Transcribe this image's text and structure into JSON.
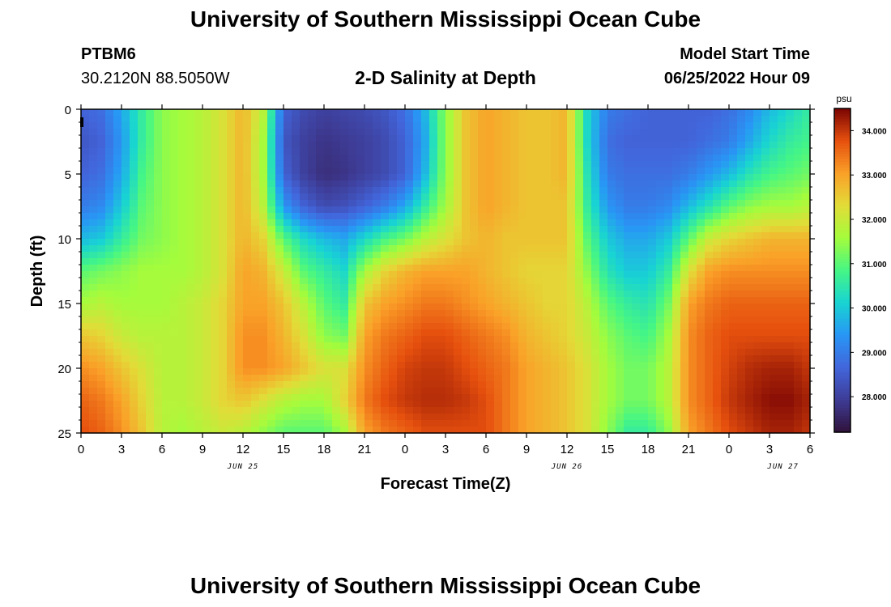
{
  "header": {
    "title": "University of Southern Mississippi Ocean Cube",
    "station_id": "PTBM6",
    "coordinates": "30.2120N  88.5050W",
    "subtitle": "2-D Salinity at Depth",
    "model_start_label": "Model Start Time",
    "model_start_value": "06/25/2022 Hour 09",
    "footer_title": "University of Southern Mississippi Ocean Cube"
  },
  "chart_data": {
    "type": "heatmap",
    "title": "2-D Salinity at Depth",
    "xlabel": "Forecast Time(Z)",
    "ylabel": "Depth (ft)",
    "x_hours_range": [
      0,
      54
    ],
    "y_range": [
      0,
      25
    ],
    "y_ticks": [
      0,
      5,
      10,
      15,
      20,
      25
    ],
    "x_tick_labels": [
      "0",
      "3",
      "6",
      "9",
      "12",
      "15",
      "18",
      "21",
      "0",
      "3",
      "6",
      "9",
      "12",
      "15",
      "18",
      "21",
      "0",
      "3",
      "6"
    ],
    "date_labels": [
      {
        "label": "JUN 25",
        "hour": 12
      },
      {
        "label": "JUN 26",
        "hour": 36
      },
      {
        "label": "JUN 27",
        "hour": 52
      }
    ],
    "colorbar": {
      "unit": "psu",
      "min": 27.2,
      "max": 34.5,
      "tick_values": [
        28,
        29,
        30,
        31,
        32,
        33,
        34
      ],
      "tick_labels": [
        "28.000",
        "29.000",
        "30.000",
        "31.000",
        "32.000",
        "33.000",
        "34.000"
      ]
    },
    "salinity_psu": {
      "depths_ft": [
        0,
        2.5,
        5,
        7.5,
        10,
        12.5,
        15,
        17.5,
        20,
        22.5,
        25
      ],
      "hours": [
        0,
        1.5,
        3,
        4.5,
        6,
        7.5,
        9,
        10.5,
        12,
        13.5,
        15,
        16.5,
        18,
        19.5,
        21,
        22.5,
        24,
        25.5,
        27,
        28.5,
        30,
        31.5,
        33,
        34.5,
        36,
        37.5,
        39,
        40.5,
        42,
        43.5,
        45,
        46.5,
        48,
        49.5,
        51,
        52.5,
        54
      ],
      "rows": [
        [
          28.6,
          28.8,
          29.6,
          30.6,
          31.4,
          31.6,
          31.8,
          32.2,
          32.8,
          31.8,
          28.6,
          28.2,
          28.0,
          28.1,
          28.2,
          28.4,
          28.8,
          29.8,
          31.4,
          32.6,
          33.0,
          32.8,
          32.6,
          32.6,
          32.8,
          30.2,
          29.0,
          28.8,
          28.6,
          28.6,
          28.6,
          28.6,
          28.8,
          29.2,
          29.8,
          30.2,
          30.6
        ],
        [
          28.4,
          28.6,
          29.4,
          30.6,
          31.4,
          31.6,
          31.8,
          32.2,
          32.8,
          31.6,
          28.4,
          28.0,
          27.8,
          27.9,
          28.0,
          28.2,
          28.6,
          29.6,
          31.4,
          32.6,
          33.0,
          32.8,
          32.6,
          32.6,
          32.8,
          30.2,
          28.8,
          28.6,
          28.6,
          28.6,
          28.6,
          28.8,
          29.0,
          29.6,
          30.2,
          30.6,
          30.8
        ],
        [
          28.6,
          28.8,
          29.6,
          30.8,
          31.4,
          31.6,
          31.8,
          32.2,
          32.8,
          31.6,
          28.6,
          28.0,
          27.7,
          27.8,
          28.0,
          28.2,
          28.6,
          29.8,
          31.4,
          32.6,
          33.0,
          32.8,
          32.6,
          32.6,
          32.8,
          30.4,
          29.0,
          28.8,
          28.8,
          28.8,
          29.0,
          29.4,
          29.8,
          30.4,
          30.8,
          31.0,
          31.2
        ],
        [
          29.0,
          29.2,
          30.0,
          31.0,
          31.4,
          31.6,
          31.8,
          32.2,
          32.8,
          31.8,
          29.4,
          28.6,
          28.2,
          28.3,
          28.6,
          29.0,
          29.6,
          30.6,
          31.6,
          32.6,
          33.0,
          32.8,
          32.6,
          32.6,
          32.6,
          30.6,
          29.4,
          29.0,
          29.0,
          29.2,
          29.8,
          30.4,
          31.0,
          31.4,
          31.6,
          31.6,
          31.8
        ],
        [
          29.8,
          30.0,
          30.6,
          31.2,
          31.4,
          31.6,
          31.8,
          32.2,
          32.8,
          32.4,
          31.0,
          30.2,
          29.8,
          29.6,
          30.2,
          30.8,
          31.2,
          31.8,
          32.2,
          32.6,
          32.8,
          32.6,
          32.6,
          32.6,
          32.6,
          31.0,
          30.0,
          29.6,
          29.6,
          30.0,
          31.0,
          32.0,
          32.4,
          32.6,
          32.8,
          32.8,
          32.8
        ],
        [
          31.0,
          31.2,
          31.4,
          31.6,
          31.6,
          31.6,
          31.8,
          32.2,
          33.0,
          32.8,
          32.0,
          31.0,
          30.6,
          30.2,
          31.6,
          32.4,
          32.8,
          33.0,
          33.0,
          33.0,
          32.8,
          32.6,
          32.4,
          32.4,
          32.4,
          31.4,
          30.4,
          30.0,
          30.0,
          30.6,
          32.2,
          33.0,
          33.2,
          33.2,
          33.2,
          33.2,
          33.2
        ],
        [
          31.6,
          31.8,
          31.6,
          31.6,
          31.6,
          31.8,
          32.0,
          32.4,
          33.0,
          33.0,
          32.6,
          31.8,
          31.0,
          30.6,
          32.6,
          33.0,
          33.2,
          33.4,
          33.4,
          33.2,
          33.0,
          32.8,
          32.6,
          32.4,
          32.4,
          31.8,
          31.0,
          30.6,
          30.4,
          31.2,
          33.0,
          33.4,
          33.6,
          33.6,
          33.6,
          33.6,
          33.6
        ],
        [
          32.6,
          32.4,
          32.0,
          31.8,
          31.8,
          31.8,
          32.0,
          32.4,
          33.2,
          33.2,
          32.8,
          32.2,
          31.4,
          31.2,
          33.0,
          33.4,
          33.6,
          33.8,
          33.8,
          33.6,
          33.4,
          33.2,
          32.8,
          32.6,
          32.4,
          32.0,
          31.4,
          31.0,
          30.8,
          31.6,
          33.2,
          33.6,
          33.8,
          33.8,
          33.8,
          33.8,
          33.8
        ],
        [
          33.2,
          33.0,
          32.6,
          32.2,
          31.8,
          31.8,
          32.0,
          32.4,
          33.2,
          33.2,
          33.0,
          32.6,
          32.2,
          32.2,
          33.2,
          33.6,
          33.9,
          34.0,
          34.0,
          33.8,
          33.6,
          33.4,
          33.0,
          32.8,
          32.6,
          32.2,
          31.6,
          31.2,
          31.2,
          31.8,
          33.2,
          33.6,
          33.9,
          34.1,
          34.2,
          34.2,
          34.0
        ],
        [
          33.6,
          33.4,
          33.0,
          32.4,
          31.8,
          31.8,
          32.0,
          32.4,
          32.6,
          32.2,
          31.8,
          31.6,
          31.6,
          32.4,
          33.4,
          33.8,
          34.0,
          34.1,
          34.1,
          34.0,
          33.8,
          33.4,
          33.0,
          32.8,
          32.6,
          32.2,
          31.6,
          31.2,
          31.2,
          31.8,
          33.2,
          33.6,
          34.0,
          34.2,
          34.4,
          34.4,
          34.2
        ],
        [
          33.8,
          33.6,
          33.2,
          32.6,
          31.8,
          31.6,
          31.8,
          32.0,
          31.8,
          31.4,
          31.0,
          31.0,
          31.0,
          31.6,
          33.0,
          33.4,
          33.6,
          33.8,
          33.8,
          33.8,
          33.8,
          33.4,
          33.0,
          32.8,
          32.6,
          32.2,
          31.4,
          30.6,
          30.6,
          31.4,
          33.0,
          33.4,
          33.8,
          34.0,
          34.2,
          34.2,
          34.0
        ]
      ]
    }
  }
}
